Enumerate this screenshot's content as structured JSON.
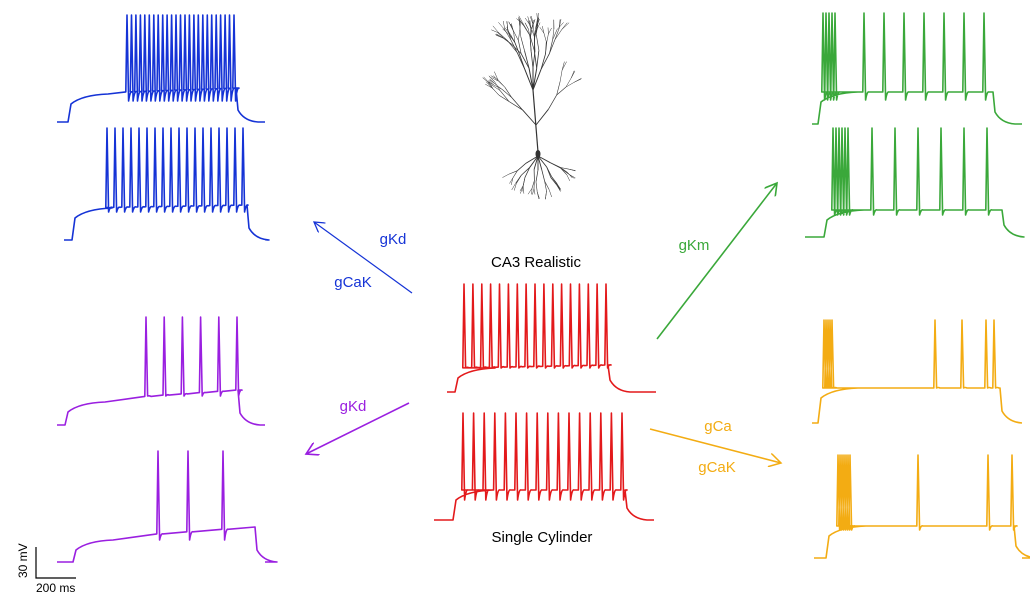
{
  "colors": {
    "blue": "#1533d6",
    "green": "#3aa83a",
    "red": "#e3191b",
    "purple": "#9a1fe0",
    "orange": "#f3ac13",
    "neuron": "#333333",
    "black": "#000000"
  },
  "labels": {
    "center_top": "CA3 Realistic",
    "center_bottom": "Single Cylinder",
    "blue_upper": "gKd",
    "blue_lower": "gCaK",
    "purple": "gKd",
    "green": "gKm",
    "orange_upper": "gCa",
    "orange_lower": "gCaK"
  },
  "scale_bar": {
    "voltage": "30 mV",
    "time": "200 ms"
  },
  "traces": [
    {
      "id": "blue-top",
      "color": "blue",
      "spike_count": 25
    },
    {
      "id": "blue-bottom",
      "color": "blue",
      "spike_count": 18
    },
    {
      "id": "red-top",
      "color": "red",
      "spike_count": 17
    },
    {
      "id": "red-bottom",
      "color": "red",
      "spike_count": 16
    },
    {
      "id": "purple-top",
      "color": "purple",
      "spike_count": 6
    },
    {
      "id": "purple-bottom",
      "color": "purple",
      "spike_count": 3
    },
    {
      "id": "green-top",
      "color": "green",
      "spike_count": 12
    },
    {
      "id": "green-bottom",
      "color": "green",
      "spike_count": 12
    },
    {
      "id": "orange-top",
      "color": "orange",
      "spike_count": 9
    },
    {
      "id": "orange-bottom",
      "color": "orange",
      "spike_count": 10
    }
  ]
}
